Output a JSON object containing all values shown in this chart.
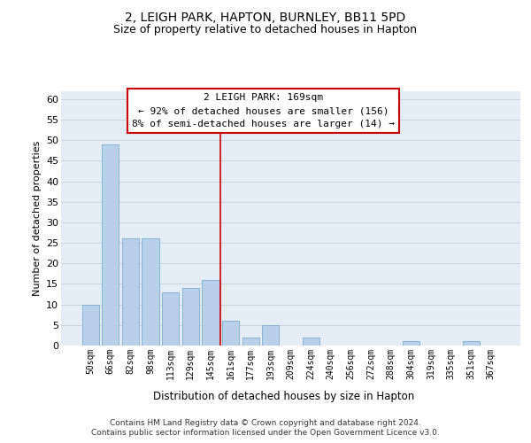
{
  "title": "2, LEIGH PARK, HAPTON, BURNLEY, BB11 5PD",
  "subtitle": "Size of property relative to detached houses in Hapton",
  "xlabel": "Distribution of detached houses by size in Hapton",
  "ylabel": "Number of detached properties",
  "categories": [
    "50sqm",
    "66sqm",
    "82sqm",
    "98sqm",
    "113sqm",
    "129sqm",
    "145sqm",
    "161sqm",
    "177sqm",
    "193sqm",
    "209sqm",
    "224sqm",
    "240sqm",
    "256sqm",
    "272sqm",
    "288sqm",
    "304sqm",
    "319sqm",
    "335sqm",
    "351sqm",
    "367sqm"
  ],
  "values": [
    10,
    49,
    26,
    26,
    13,
    14,
    16,
    6,
    2,
    5,
    0,
    2,
    0,
    0,
    0,
    0,
    1,
    0,
    0,
    1,
    0
  ],
  "bar_color": "#b8d0e8",
  "bar_edge_color": "#7aadcf",
  "marker_bin_index": 7,
  "marker_label": "2 LEIGH PARK: 169sqm",
  "annotation_line1": "← 92% of detached houses are smaller (156)",
  "annotation_line2": "8% of semi-detached houses are larger (14) →",
  "annotation_box_facecolor": "#ffffff",
  "annotation_box_edgecolor": "#cc0000",
  "marker_line_color": "#cc0000",
  "ylim_max": 62,
  "yticks": [
    0,
    5,
    10,
    15,
    20,
    25,
    30,
    35,
    40,
    45,
    50,
    55,
    60
  ],
  "grid_color": "#c8d4e0",
  "plot_bg_color": "#e4ecf5",
  "footer_line1": "Contains HM Land Registry data © Crown copyright and database right 2024.",
  "footer_line2": "Contains public sector information licensed under the Open Government Licence v3.0."
}
